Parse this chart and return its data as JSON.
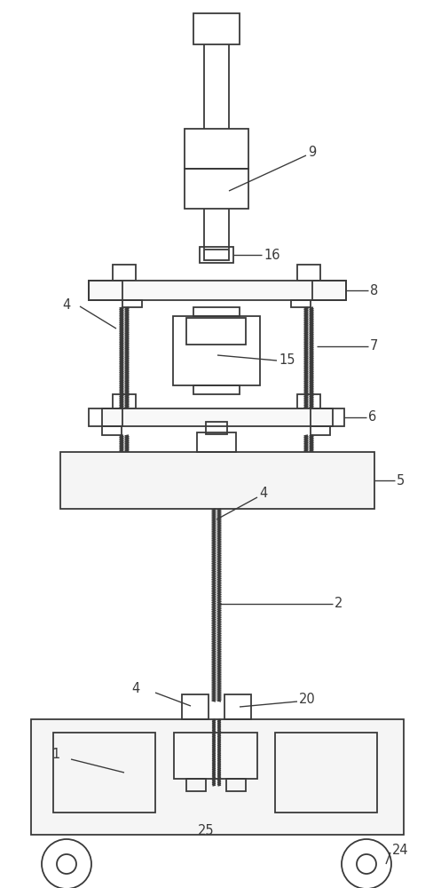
{
  "bg_color": "#ffffff",
  "line_color": "#3a3a3a",
  "line_width": 1.3,
  "label_fontsize": 10.5,
  "fig_width": 4.88,
  "fig_height": 10.0
}
